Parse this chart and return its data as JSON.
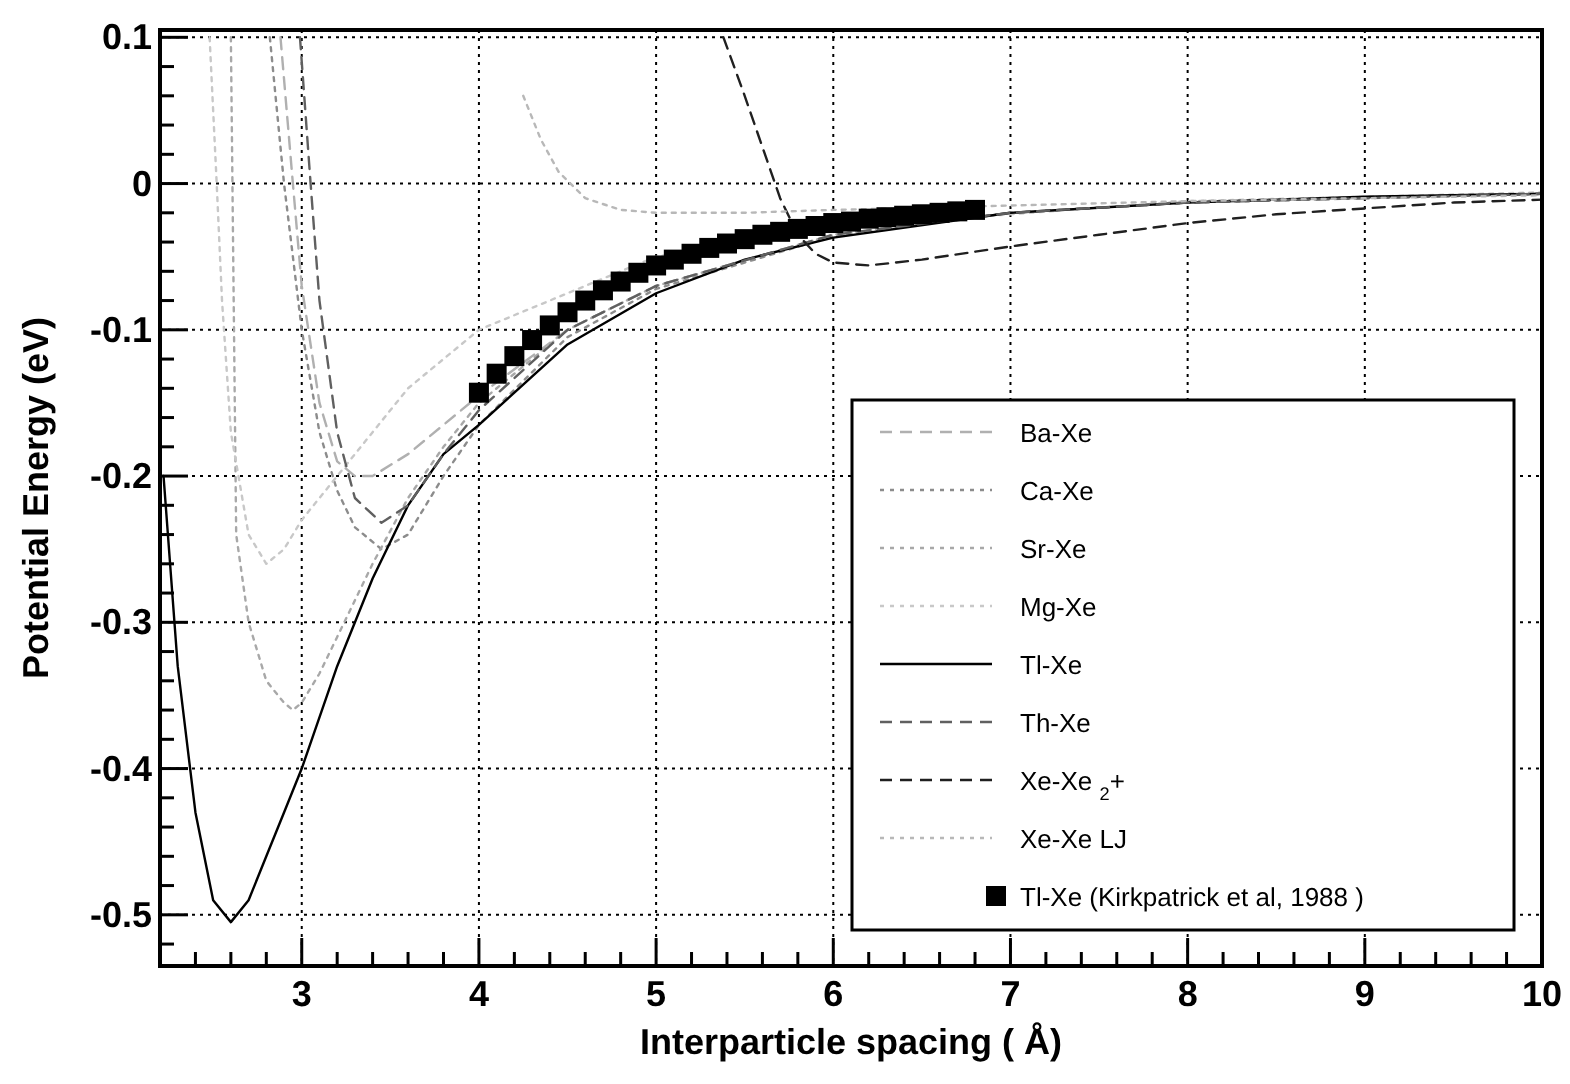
{
  "chart_data": {
    "type": "line",
    "xlabel": "Interparticle spacing ( Å)",
    "ylabel": "Potential Energy (eV)",
    "xlim": [
      2.2,
      10
    ],
    "ylim": [
      -0.535,
      0.105
    ],
    "xticks": [
      {
        "value": 2.2,
        "label": null
      },
      {
        "value": 2.4,
        "label": null
      },
      {
        "value": 2.6,
        "label": null
      },
      {
        "value": 2.8,
        "label": null
      },
      3,
      {
        "value": 3.2,
        "label": null
      },
      {
        "value": 3.4,
        "label": null
      },
      {
        "value": 3.6,
        "label": null
      },
      {
        "value": 3.8,
        "label": null
      },
      4,
      {
        "value": 4.2,
        "label": null
      },
      {
        "value": 4.4,
        "label": null
      },
      {
        "value": 4.6,
        "label": null
      },
      {
        "value": 4.8,
        "label": null
      },
      5,
      {
        "value": 5.2,
        "label": null
      },
      {
        "value": 5.4,
        "label": null
      },
      {
        "value": 5.6,
        "label": null
      },
      {
        "value": 5.8,
        "label": null
      },
      6,
      {
        "value": 6.2,
        "label": null
      },
      {
        "value": 6.4,
        "label": null
      },
      {
        "value": 6.6,
        "label": null
      },
      {
        "value": 6.8,
        "label": null
      },
      7,
      {
        "value": 7.2,
        "label": null
      },
      {
        "value": 7.4,
        "label": null
      },
      {
        "value": 7.6,
        "label": null
      },
      {
        "value": 7.8,
        "label": null
      },
      8,
      {
        "value": 8.2,
        "label": null
      },
      {
        "value": 8.4,
        "label": null
      },
      {
        "value": 8.6,
        "label": null
      },
      {
        "value": 8.8,
        "label": null
      },
      9,
      {
        "value": 9.2,
        "label": null
      },
      {
        "value": 9.4,
        "label": null
      },
      {
        "value": 9.6,
        "label": null
      },
      {
        "value": 9.8,
        "label": null
      },
      10
    ],
    "yticks": [
      {
        "value": -0.52,
        "label": null
      },
      -0.5,
      {
        "value": -0.48,
        "label": null
      },
      {
        "value": -0.46,
        "label": null
      },
      {
        "value": -0.44,
        "label": null
      },
      {
        "value": -0.42,
        "label": null
      },
      -0.4,
      {
        "value": -0.38,
        "label": null
      },
      {
        "value": -0.36,
        "label": null
      },
      {
        "value": -0.34,
        "label": null
      },
      {
        "value": -0.32,
        "label": null
      },
      -0.3,
      {
        "value": -0.28,
        "label": null
      },
      {
        "value": -0.26,
        "label": null
      },
      {
        "value": -0.24,
        "label": null
      },
      {
        "value": -0.22,
        "label": null
      },
      -0.2,
      {
        "value": -0.18,
        "label": null
      },
      {
        "value": -0.16,
        "label": null
      },
      {
        "value": -0.14,
        "label": null
      },
      {
        "value": -0.12,
        "label": null
      },
      -0.1,
      {
        "value": -0.08,
        "label": null
      },
      {
        "value": -0.06,
        "label": null
      },
      {
        "value": -0.04,
        "label": null
      },
      {
        "value": -0.02,
        "label": null
      },
      0,
      {
        "value": 0.02,
        "label": null
      },
      {
        "value": 0.04,
        "label": null
      },
      {
        "value": 0.06,
        "label": null
      },
      {
        "value": 0.08,
        "label": null
      },
      0.1
    ],
    "grid": true,
    "legend": "bottom right",
    "series": [
      {
        "name": "Ba-Xe",
        "color": "#b0b0b0",
        "line_style": "dashed",
        "x": [
          2.88,
          2.95,
          3.0,
          3.1,
          3.2,
          3.3,
          3.4,
          3.6,
          3.8,
          4.0,
          4.5,
          5,
          6,
          7,
          8,
          10
        ],
        "values": [
          0.1,
          0.0,
          -0.07,
          -0.15,
          -0.19,
          -0.2,
          -0.2,
          -0.185,
          -0.165,
          -0.145,
          -0.1,
          -0.07,
          -0.035,
          -0.02,
          -0.013,
          -0.007
        ]
      },
      {
        "name": "Ca-Xe",
        "color": "#8c8c8c",
        "line_style": "dotted",
        "x": [
          2.82,
          2.9,
          3.0,
          3.1,
          3.2,
          3.3,
          3.45,
          3.6,
          3.8,
          4.0,
          4.5,
          5,
          6,
          7,
          8,
          10
        ],
        "values": [
          0.1,
          0.0,
          -0.1,
          -0.17,
          -0.21,
          -0.235,
          -0.25,
          -0.24,
          -0.2,
          -0.165,
          -0.105,
          -0.072,
          -0.036,
          -0.02,
          -0.013,
          -0.007
        ]
      },
      {
        "name": "Sr-Xe",
        "color": "#a8a8a8",
        "line_style": "dotted",
        "x": [
          2.6,
          2.63,
          2.7,
          2.8,
          2.9,
          2.95,
          3.0,
          3.1,
          3.2,
          3.3,
          3.4,
          3.6,
          3.8,
          4.0,
          4.5,
          5,
          6,
          7,
          8,
          10
        ],
        "values": [
          0.1,
          -0.24,
          -0.3,
          -0.34,
          -0.355,
          -0.36,
          -0.355,
          -0.335,
          -0.31,
          -0.285,
          -0.26,
          -0.215,
          -0.18,
          -0.15,
          -0.1,
          -0.07,
          -0.035,
          -0.02,
          -0.013,
          -0.007
        ]
      },
      {
        "name": "Mg-Xe",
        "color": "#c8c8c8",
        "line_style": "dotted",
        "x": [
          2.48,
          2.52,
          2.55,
          2.6,
          2.7,
          2.8,
          2.9,
          3.0,
          3.2,
          3.4,
          3.6,
          4.0,
          5,
          6,
          8,
          10
        ],
        "values": [
          0.1,
          0.0,
          -0.08,
          -0.17,
          -0.24,
          -0.26,
          -0.25,
          -0.23,
          -0.2,
          -0.17,
          -0.14,
          -0.1,
          -0.05,
          -0.03,
          -0.012,
          -0.006
        ]
      },
      {
        "name": "Tl-Xe",
        "color": "#000000",
        "line_style": "solid",
        "x": [
          2.22,
          2.3,
          2.4,
          2.5,
          2.6,
          2.7,
          2.8,
          2.9,
          3.0,
          3.2,
          3.4,
          3.6,
          3.8,
          4.0,
          4.5,
          5,
          5.5,
          6,
          7,
          8,
          9,
          10
        ],
        "values": [
          -0.2,
          -0.33,
          -0.43,
          -0.49,
          -0.505,
          -0.49,
          -0.46,
          -0.43,
          -0.4,
          -0.33,
          -0.27,
          -0.22,
          -0.185,
          -0.165,
          -0.11,
          -0.075,
          -0.052,
          -0.037,
          -0.02,
          -0.013,
          -0.009,
          -0.007
        ]
      },
      {
        "name": "Th-Xe",
        "color": "#606060",
        "line_style": "dashed",
        "x": [
          2.99,
          3.05,
          3.1,
          3.2,
          3.3,
          3.45,
          3.6,
          3.8,
          4.0,
          4.5,
          5,
          6,
          7,
          8,
          10
        ],
        "values": [
          0.1,
          0.0,
          -0.08,
          -0.17,
          -0.215,
          -0.232,
          -0.22,
          -0.185,
          -0.155,
          -0.1,
          -0.07,
          -0.035,
          -0.02,
          -0.013,
          -0.007
        ]
      },
      {
        "name": "Xe-Xe $_{2}$+",
        "color": "#202020",
        "line_style": "dashed",
        "x": [
          5.38,
          5.5,
          5.6,
          5.7,
          5.8,
          5.9,
          6.0,
          6.2,
          6.5,
          7,
          7.5,
          8,
          8.5,
          9,
          9.5,
          10
        ],
        "values": [
          0.1,
          0.06,
          0.025,
          -0.01,
          -0.035,
          -0.048,
          -0.054,
          -0.056,
          -0.052,
          -0.043,
          -0.035,
          -0.027,
          -0.021,
          -0.017,
          -0.013,
          -0.011
        ]
      },
      {
        "name": "Xe-Xe LJ",
        "color": "#b8b8b8",
        "line_style": "dotted",
        "x": [
          4.25,
          4.35,
          4.45,
          4.6,
          4.8,
          5,
          5.5,
          6,
          7,
          8,
          9,
          10
        ],
        "values": [
          0.06,
          0.03,
          0.008,
          -0.01,
          -0.018,
          -0.02,
          -0.02,
          -0.018,
          -0.015,
          -0.012,
          -0.01,
          -0.008
        ]
      },
      {
        "name": "Tl-Xe (Kirkpatrick et al, 1988 )",
        "type": "scatter",
        "marker": "square",
        "color": "#000000",
        "x": [
          4.0,
          4.1,
          4.2,
          4.3,
          4.4,
          4.5,
          4.6,
          4.7,
          4.8,
          4.9,
          5.0,
          5.1,
          5.2,
          5.3,
          5.4,
          5.5,
          5.6,
          5.7,
          5.8,
          5.9,
          6.0,
          6.1,
          6.2,
          6.3,
          6.4,
          6.5,
          6.6,
          6.7,
          6.8
        ],
        "values": [
          -0.143,
          -0.13,
          -0.118,
          -0.107,
          -0.097,
          -0.088,
          -0.08,
          -0.073,
          -0.067,
          -0.061,
          -0.056,
          -0.052,
          -0.048,
          -0.044,
          -0.041,
          -0.038,
          -0.035,
          -0.033,
          -0.031,
          -0.029,
          -0.027,
          -0.026,
          -0.024,
          -0.023,
          -0.022,
          -0.021,
          -0.02,
          -0.019,
          -0.018
        ]
      }
    ]
  }
}
